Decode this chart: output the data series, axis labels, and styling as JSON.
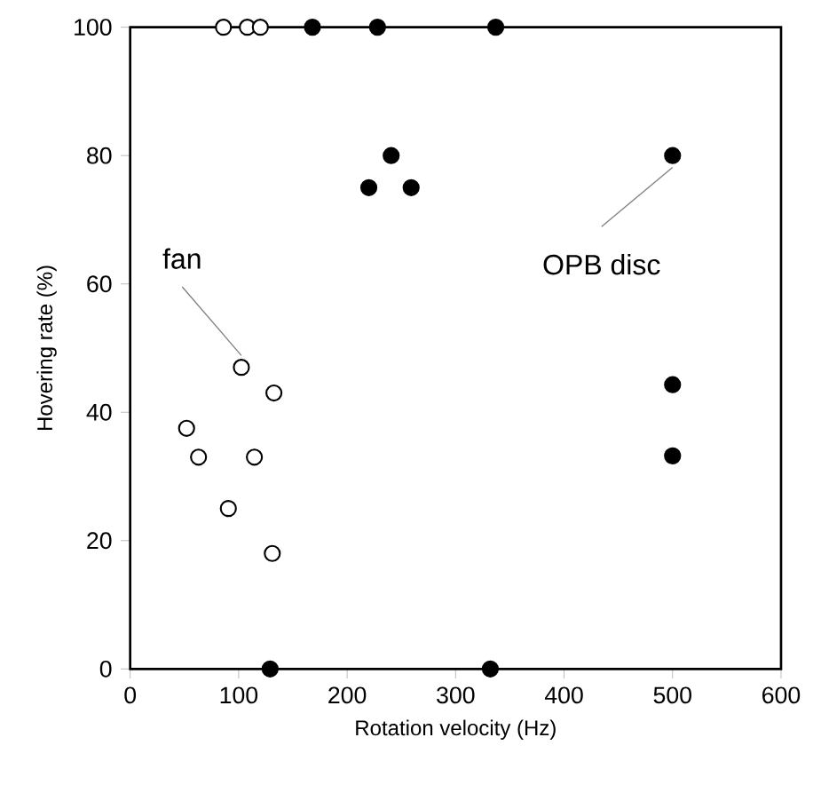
{
  "chart_data": {
    "type": "scatter",
    "xlabel": "Rotation velocity (Hz)",
    "ylabel": "Hovering rate (%)",
    "xlim": [
      0,
      600
    ],
    "ylim": [
      0,
      100
    ],
    "xticks": [
      0,
      100,
      200,
      300,
      400,
      500,
      600
    ],
    "yticks": [
      0,
      20,
      40,
      60,
      80,
      100
    ],
    "grid": false,
    "marker": "circle",
    "series": [
      {
        "color": "#ffffff",
        "x": [
          86,
          108,
          120,
          102.5,
          132.5,
          52,
          63,
          114.5,
          90.5,
          131
        ],
        "values": [
          100,
          100,
          100,
          47,
          43,
          37.5,
          33,
          33,
          25,
          18
        ]
      },
      {
        "color": "#000000",
        "x": [
          168,
          228,
          337,
          240.6,
          220,
          259,
          500,
          500,
          500,
          129,
          332
        ],
        "values": [
          100,
          100,
          100,
          80,
          75,
          75,
          80,
          44.3,
          33.2,
          0,
          0
        ]
      }
    ],
    "annotations": [
      {
        "text": "fan",
        "x": 102.5,
        "y": 47
      },
      {
        "text": "OPB disc",
        "x": 500,
        "y": 80
      }
    ]
  }
}
